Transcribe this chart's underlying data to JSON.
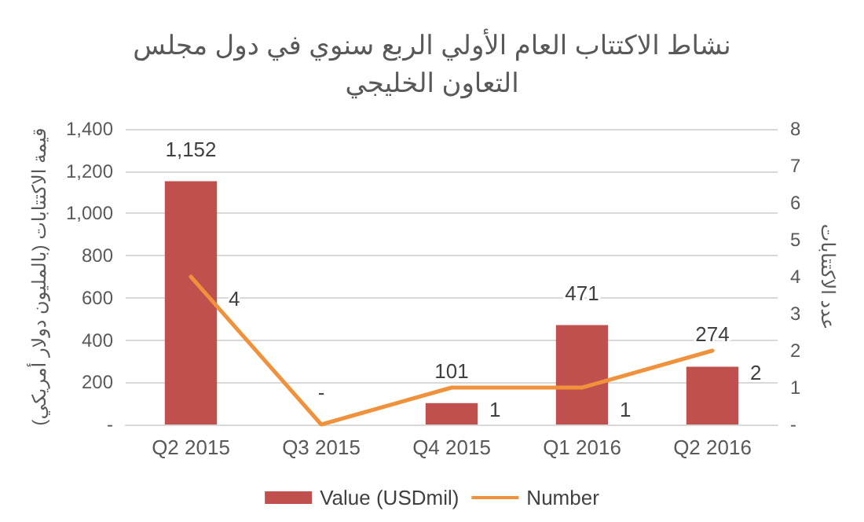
{
  "chart_data": {
    "type": "bar",
    "title": "نشاط الاكتتاب العام الأولي الربع سنوي في دول مجلس\nالتعاون الخليجي",
    "ylabel": "قيمة الاكتتابات (بالمليون دولار أمريكي)",
    "y2label": "عدد الاكتتابات",
    "categories": [
      "Q2 2015",
      "Q3 2015",
      "Q4 2015",
      "Q1 2016",
      "Q2 2016"
    ],
    "series": [
      {
        "name": "Value (USDmil)",
        "type": "bar",
        "color": "#c0504d",
        "values": [
          1152,
          0,
          101,
          471,
          274
        ],
        "value_labels": [
          "1,152",
          "-",
          "101",
          "471",
          "274"
        ]
      },
      {
        "name": "Number",
        "type": "line",
        "axis": "y2",
        "color": "#f0913c",
        "values": [
          4,
          0,
          1,
          1,
          2
        ],
        "value_labels": [
          "4",
          null,
          "1",
          "1",
          "2"
        ]
      }
    ],
    "ylim": [
      0,
      1400
    ],
    "yticks": [
      {
        "value": 0,
        "label": "-"
      },
      {
        "value": 200,
        "label": "200"
      },
      {
        "value": 400,
        "label": "400"
      },
      {
        "value": 600,
        "label": "600"
      },
      {
        "value": 800,
        "label": "800"
      },
      {
        "value": 1000,
        "label": "1,000"
      },
      {
        "value": 1200,
        "label": "1,200"
      },
      {
        "value": 1400,
        "label": "1,400"
      }
    ],
    "y2lim": [
      0,
      8
    ],
    "y2ticks": [
      {
        "value": 0,
        "label": "-"
      },
      1,
      2,
      3,
      4,
      5,
      6,
      7,
      8
    ],
    "grid": "y",
    "legend": "bottom",
    "marker": "none",
    "line_style": "solid"
  }
}
